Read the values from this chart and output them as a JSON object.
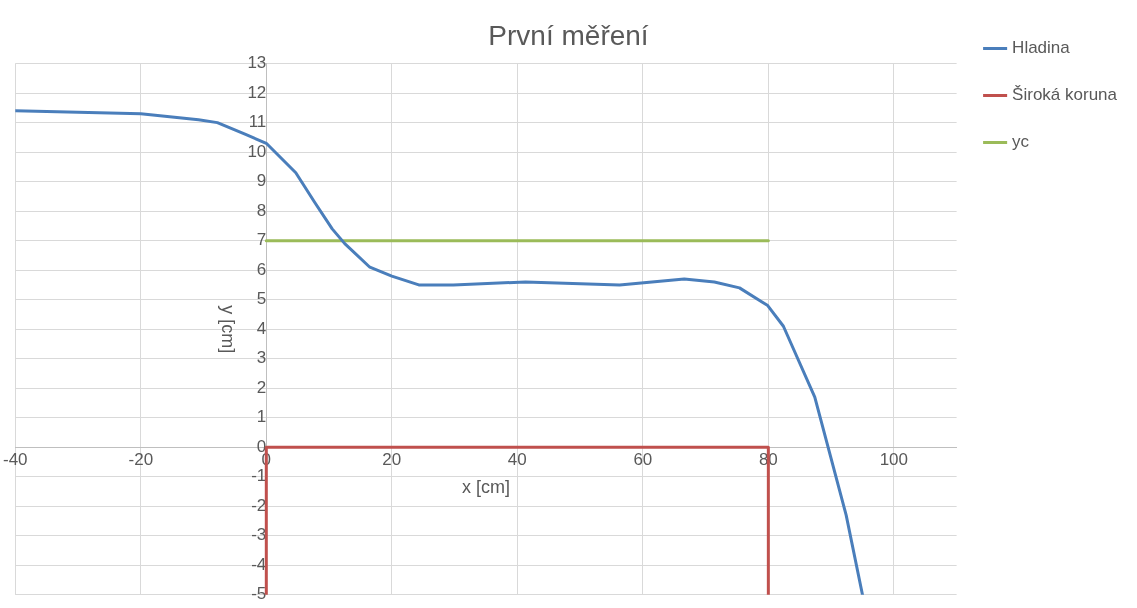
{
  "chart_data": {
    "type": "line",
    "title": "První měření",
    "xlabel": "x [cm]",
    "ylabel": "y [cm]",
    "xlim": [
      -40,
      110
    ],
    "xticks": [
      -40,
      -20,
      0,
      20,
      40,
      60,
      80,
      100
    ],
    "ylim": [
      -5,
      13
    ],
    "yticks": [
      -5,
      -4,
      -3,
      -2,
      -1,
      0,
      1,
      2,
      3,
      4,
      5,
      6,
      7,
      8,
      9,
      10,
      11,
      12,
      13
    ],
    "grid": true,
    "legend": "right",
    "marker": "none",
    "line_style": "solid",
    "series": [
      {
        "name": "Hladina",
        "color": "#4a7ebb",
        "x": [
          -40,
          -20,
          -10.8,
          -7.8,
          -3.3,
          0,
          4.7,
          7.7,
          10.5,
          12.5,
          16.5,
          20,
          24.3,
          29.8,
          41.3,
          56.3,
          66.6,
          71.4,
          75.4,
          79.9,
          82.4,
          87.4,
          92.4,
          95
        ],
        "values": [
          11.4,
          11.3,
          11.1,
          11,
          10.6,
          10.3,
          9.3,
          8.3,
          7.4,
          6.9,
          6.1,
          5.8,
          5.5,
          5.5,
          5.6,
          5.5,
          5.7,
          5.6,
          5.4,
          4.8,
          4.1,
          1.7,
          -2.3,
          -5
        ]
      },
      {
        "name": "Široká koruna",
        "color": "#c0504d",
        "x": [
          0,
          0,
          80,
          80
        ],
        "values": [
          -5,
          0,
          0,
          -5
        ]
      },
      {
        "name": "yc",
        "color": "#9bbb59",
        "x": [
          0,
          80
        ],
        "values": [
          7,
          7
        ]
      }
    ]
  }
}
